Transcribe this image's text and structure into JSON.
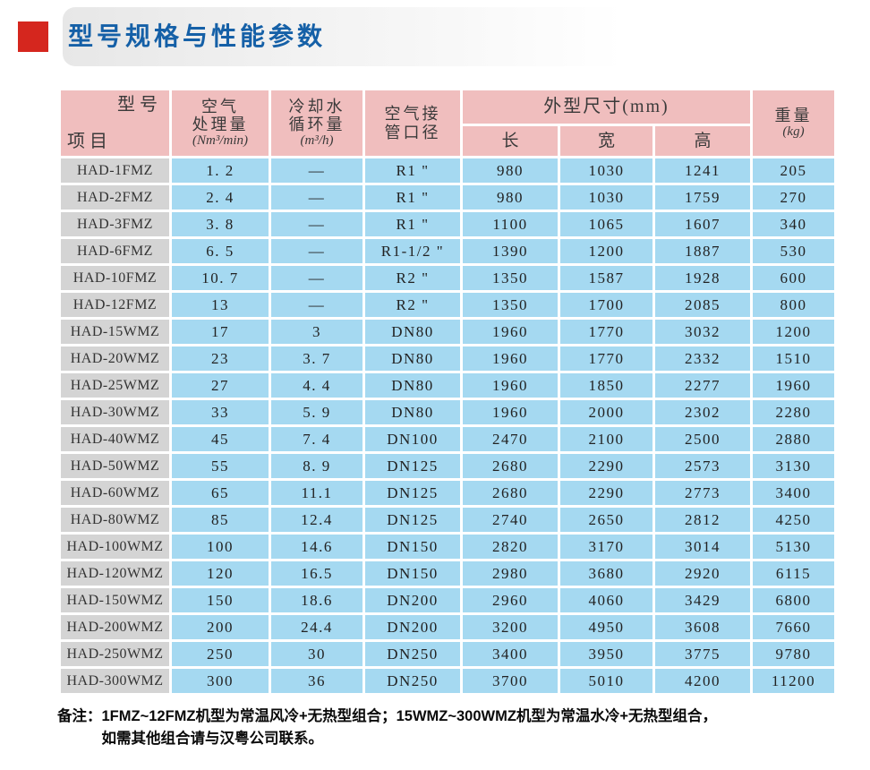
{
  "title": "型号规格与性能参数",
  "table": {
    "header": {
      "corner_top": "型号",
      "corner_bottom": "项目",
      "air_line1": "空气",
      "air_line2": "处理量",
      "air_unit": "(Nm³/min)",
      "water_line1": "冷却水",
      "water_line2": "循环量",
      "water_unit": "(m³/h)",
      "pipe_line1": "空气接",
      "pipe_line2": "管口径",
      "dims_title": "外型尺寸(mm)",
      "dim_length": "长",
      "dim_width": "宽",
      "dim_height": "高",
      "weight_line1": "重量",
      "weight_unit": "(kg)"
    },
    "rows": [
      {
        "model": "HAD-1FMZ",
        "air": "1. 2",
        "water": "—",
        "pipe": "R1 \"",
        "len": "980",
        "width": "1030",
        "height": "1241",
        "weight": "205"
      },
      {
        "model": "HAD-2FMZ",
        "air": "2. 4",
        "water": "—",
        "pipe": "R1 \"",
        "len": "980",
        "width": "1030",
        "height": "1759",
        "weight": "270"
      },
      {
        "model": "HAD-3FMZ",
        "air": "3. 8",
        "water": "—",
        "pipe": "R1 \"",
        "len": "1100",
        "width": "1065",
        "height": "1607",
        "weight": "340"
      },
      {
        "model": "HAD-6FMZ",
        "air": "6. 5",
        "water": "—",
        "pipe": "R1-1/2 \"",
        "len": "1390",
        "width": "1200",
        "height": "1887",
        "weight": "530"
      },
      {
        "model": "HAD-10FMZ",
        "air": "10. 7",
        "water": "—",
        "pipe": "R2 \"",
        "len": "1350",
        "width": "1587",
        "height": "1928",
        "weight": "600"
      },
      {
        "model": "HAD-12FMZ",
        "air": "13",
        "water": "—",
        "pipe": "R2 \"",
        "len": "1350",
        "width": "1700",
        "height": "2085",
        "weight": "800"
      },
      {
        "model": "HAD-15WMZ",
        "air": "17",
        "water": "3",
        "pipe": "DN80",
        "len": "1960",
        "width": "1770",
        "height": "3032",
        "weight": "1200"
      },
      {
        "model": "HAD-20WMZ",
        "air": "23",
        "water": "3. 7",
        "pipe": "DN80",
        "len": "1960",
        "width": "1770",
        "height": "2332",
        "weight": "1510"
      },
      {
        "model": "HAD-25WMZ",
        "air": "27",
        "water": "4. 4",
        "pipe": "DN80",
        "len": "1960",
        "width": "1850",
        "height": "2277",
        "weight": "1960"
      },
      {
        "model": "HAD-30WMZ",
        "air": "33",
        "water": "5. 9",
        "pipe": "DN80",
        "len": "1960",
        "width": "2000",
        "height": "2302",
        "weight": "2280"
      },
      {
        "model": "HAD-40WMZ",
        "air": "45",
        "water": "7. 4",
        "pipe": "DN100",
        "len": "2470",
        "width": "2100",
        "height": "2500",
        "weight": "2880"
      },
      {
        "model": "HAD-50WMZ",
        "air": "55",
        "water": "8. 9",
        "pipe": "DN125",
        "len": "2680",
        "width": "2290",
        "height": "2573",
        "weight": "3130"
      },
      {
        "model": "HAD-60WMZ",
        "air": "65",
        "water": "11.1",
        "pipe": "DN125",
        "len": "2680",
        "width": "2290",
        "height": "2773",
        "weight": "3400"
      },
      {
        "model": "HAD-80WMZ",
        "air": "85",
        "water": "12.4",
        "pipe": "DN125",
        "len": "2740",
        "width": "2650",
        "height": "2812",
        "weight": "4250"
      },
      {
        "model": "HAD-100WMZ",
        "air": "100",
        "water": "14.6",
        "pipe": "DN150",
        "len": "2820",
        "width": "3170",
        "height": "3014",
        "weight": "5130"
      },
      {
        "model": "HAD-120WMZ",
        "air": "120",
        "water": "16.5",
        "pipe": "DN150",
        "len": "2980",
        "width": "3680",
        "height": "2920",
        "weight": "6115"
      },
      {
        "model": "HAD-150WMZ",
        "air": "150",
        "water": "18.6",
        "pipe": "DN200",
        "len": "2960",
        "width": "4060",
        "height": "3429",
        "weight": "6800"
      },
      {
        "model": "HAD-200WMZ",
        "air": "200",
        "water": "24.4",
        "pipe": "DN200",
        "len": "3200",
        "width": "4950",
        "height": "3608",
        "weight": "7660"
      },
      {
        "model": "HAD-250WMZ",
        "air": "250",
        "water": "30",
        "pipe": "DN250",
        "len": "3400",
        "width": "3950",
        "height": "3775",
        "weight": "9780"
      },
      {
        "model": "HAD-300WMZ",
        "air": "300",
        "water": "36",
        "pipe": "DN250",
        "len": "3700",
        "width": "5010",
        "height": "4200",
        "weight": "11200"
      }
    ]
  },
  "note": {
    "label": "备注：",
    "line1": "1FMZ~12FMZ机型为常温风冷+无热型组合；15WMZ~300WMZ机型为常温水冷+无热型组合，",
    "line2": "如需其他组合请与汉粤公司联系。"
  },
  "colors": {
    "title_blue": "#1560a7",
    "marker_red": "#d5261e",
    "header_pink": "#f0bebe",
    "cell_blue": "#a5d9f1",
    "model_gray": "#d4d4d4"
  }
}
